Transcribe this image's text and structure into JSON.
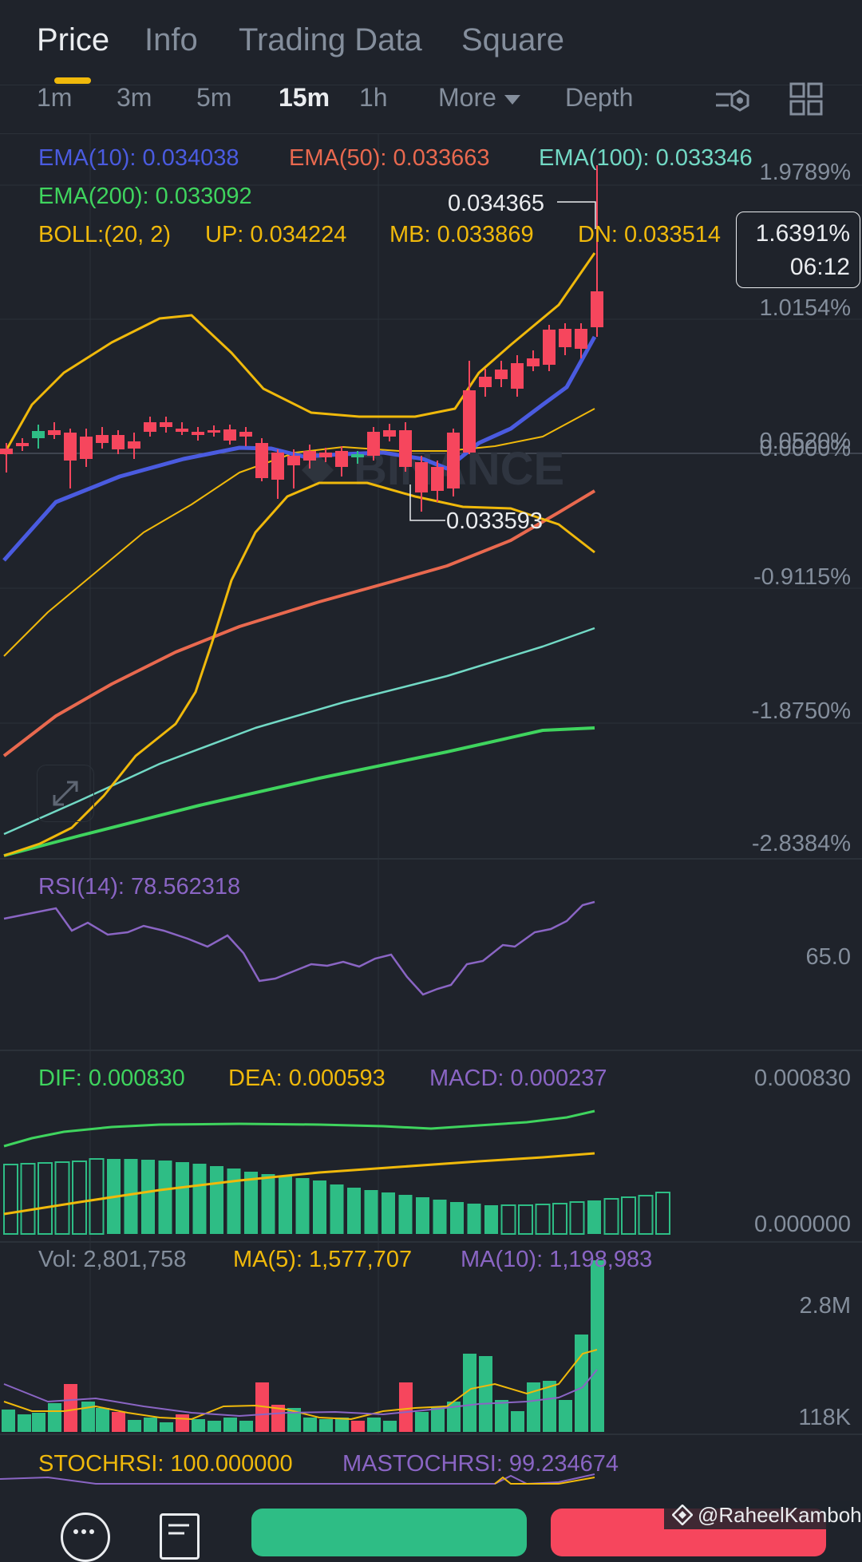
{
  "tabs": [
    "Price",
    "Info",
    "Trading Data",
    "Square"
  ],
  "timeframes": [
    "1m",
    "3m",
    "5m",
    "15m",
    "1h"
  ],
  "more_label": "More",
  "depth_label": "Depth",
  "ema": {
    "ema10": "EMA(10): 0.034038",
    "ema50": "EMA(50): 0.033663",
    "ema100": "EMA(100): 0.033346",
    "ema200": "EMA(200): 0.033092"
  },
  "boll": {
    "label": "BOLL:(20, 2)",
    "up": "UP: 0.034224",
    "mb": "MB: 0.033869",
    "dn": "DN: 0.033514"
  },
  "price_axis": [
    "1.9789%",
    "1.0154%",
    "0.0520%",
    "0.0000%",
    "-0.9115%",
    "-1.8750%",
    "-2.8384%"
  ],
  "current_price": {
    "pct": "1.6391%",
    "countdown": "06:12"
  },
  "high_label": "0.034365",
  "low_label": "0.033593",
  "watermark": "BINANCE",
  "rsi": {
    "label": "RSI(14): 78.562318",
    "axis": "65.0"
  },
  "macd": {
    "dif": "DIF: 0.000830",
    "dea": "DEA: 0.000593",
    "macd": "MACD: 0.000237",
    "axis_top": "0.000830",
    "axis_bottom": "0.000000"
  },
  "volume": {
    "vol": "Vol: 2,801,758",
    "ma5": "MA(5): 1,577,707",
    "ma10": "MA(10): 1,198,983",
    "axis_top": "2.8M",
    "axis_bottom": "118K"
  },
  "stochrsi": {
    "stoch": "STOCHRSI: 100.000000",
    "mastoch": "MASTOCHRSI: 99.234674"
  },
  "credit": "@RaheelKamboh",
  "colors": {
    "up": "#2ebd85",
    "down": "#f6465d",
    "accent": "#f0b90b",
    "ema10": "#4a5be0",
    "ema50": "#e9694f",
    "ema100": "#72d9c5",
    "ema200": "#3fd45e",
    "rsi": "#8a65c4"
  }
}
